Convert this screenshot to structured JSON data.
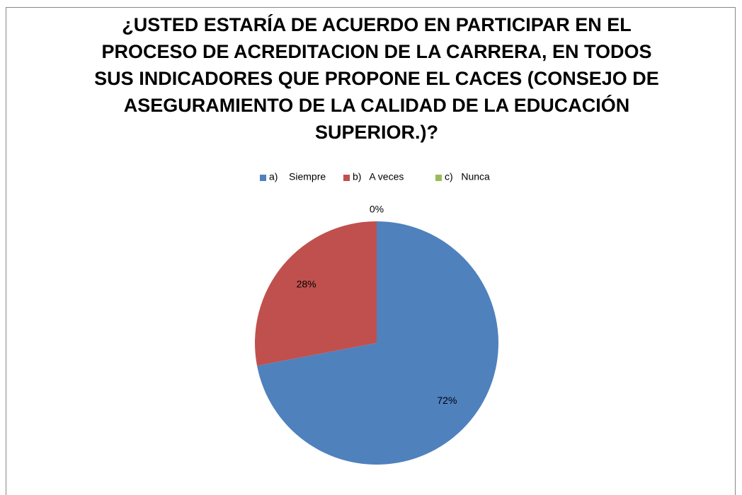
{
  "chart_data": {
    "type": "pie",
    "title": "¿USTED ESTARÍA DE ACUERDO EN PARTICIPAR EN EL PROCESO DE ACREDITACION DE LA CARRERA, EN TODOS SUS INDICADORES QUE PROPONE EL CACES (CONSEJO DE ASEGURAMIENTO DE LA CALIDAD DE LA EDUCACIÓN SUPERIOR.)?",
    "categories": [
      "a)    Siempre",
      "b)   A veces",
      "c)   Nunca"
    ],
    "values": [
      72,
      28,
      0
    ],
    "value_labels": [
      "72%",
      "28%",
      "0%"
    ],
    "colors": [
      "#4f81bd",
      "#c0504d",
      "#9bbb59"
    ],
    "legend": "top"
  }
}
